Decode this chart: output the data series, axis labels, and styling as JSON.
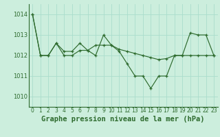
{
  "title": "Graphe pression niveau de la mer (hPa)",
  "x_values": [
    0,
    1,
    2,
    3,
    4,
    5,
    6,
    7,
    8,
    9,
    10,
    11,
    12,
    13,
    14,
    15,
    16,
    17,
    18,
    19,
    20,
    21,
    22,
    23
  ],
  "y1_values": [
    1014.0,
    1012.0,
    1012.0,
    1012.6,
    1012.0,
    1012.0,
    1012.25,
    1012.25,
    1012.0,
    1013.0,
    1012.5,
    1012.2,
    1011.6,
    1011.0,
    1011.0,
    1010.4,
    1011.0,
    1011.0,
    1012.0,
    1012.0,
    1013.1,
    1013.0,
    1013.0,
    1012.0
  ],
  "y2_values": [
    1014.0,
    1012.0,
    1012.0,
    1012.6,
    1012.2,
    1012.2,
    1012.6,
    1012.25,
    1012.5,
    1012.5,
    1012.5,
    1012.3,
    1012.2,
    1012.1,
    1012.0,
    1011.9,
    1011.8,
    1011.85,
    1012.0,
    1012.0,
    1012.0,
    1012.0,
    1012.0,
    1012.0
  ],
  "ylim": [
    1009.5,
    1014.5
  ],
  "yticks": [
    1010,
    1011,
    1012,
    1013,
    1014
  ],
  "xticks": [
    0,
    1,
    2,
    3,
    4,
    5,
    6,
    7,
    8,
    9,
    10,
    11,
    12,
    13,
    14,
    15,
    16,
    17,
    18,
    19,
    20,
    21,
    22,
    23
  ],
  "line_color": "#2d6a2d",
  "bg_color": "#cceedd",
  "grid_color": "#aaddcc",
  "title_color": "#2d6a2d",
  "title_fontsize": 7.5,
  "tick_fontsize": 5.5,
  "ytick_fontsize": 6.0
}
